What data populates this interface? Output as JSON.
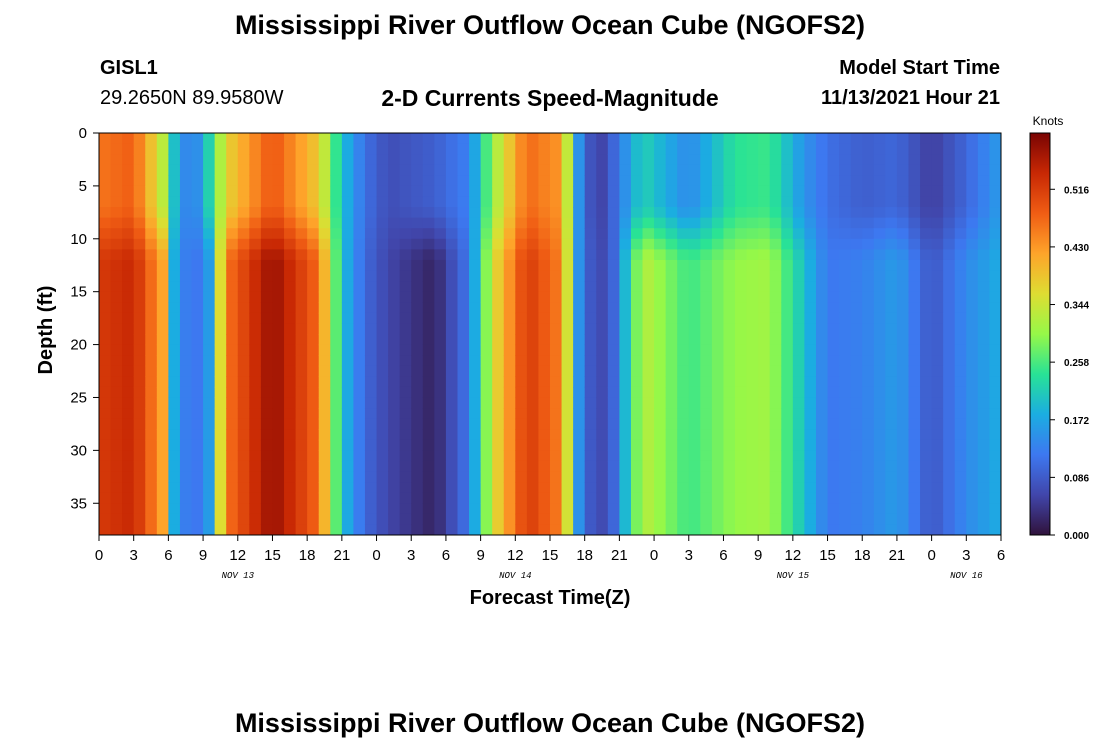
{
  "page": {
    "title_top": "Mississippi River Outflow Ocean Cube (NGOFS2)",
    "title_bottom": "Mississippi River Outflow Ocean Cube (NGOFS2)",
    "station_id": "GISL1",
    "station_coords": "29.2650N  89.9580W",
    "subtitle": "2-D Currents Speed-Magnitude",
    "start_label": "Model Start Time",
    "start_value": "11/13/2021 Hour 21"
  },
  "chart_data": {
    "type": "heatmap",
    "xlabel": "Forecast Time(Z)",
    "ylabel": "Depth (ft)",
    "colorbar_label": "Knots",
    "ylim": [
      0,
      38
    ],
    "y_ticks": [
      "0",
      "5",
      "10",
      "15",
      "20",
      "25",
      "30",
      "35"
    ],
    "x_ticks": [
      "0",
      "3",
      "6",
      "9",
      "12",
      "15",
      "18",
      "21",
      "0",
      "3",
      "6",
      "9",
      "12",
      "15",
      "18",
      "21",
      "0",
      "3",
      "6",
      "9",
      "12",
      "15",
      "18",
      "21",
      "0",
      "3",
      "6"
    ],
    "date_labels": [
      {
        "text": "NOV 13",
        "hour": 12
      },
      {
        "text": "NOV 14",
        "hour": 36
      },
      {
        "text": "NOV 15",
        "hour": 60
      },
      {
        "text": "NOV 16",
        "hour": 75
      }
    ],
    "colorbar_ticks": [
      "0.000",
      "0.086",
      "0.172",
      "0.258",
      "0.344",
      "0.430",
      "0.516"
    ],
    "value_range": [
      0,
      0.6
    ],
    "hours": [
      0,
      78
    ],
    "columns": [
      {
        "x_hour": 0,
        "top": 0.46,
        "bottom": 0.52
      },
      {
        "x_hour": 3,
        "top": 0.48,
        "bottom": 0.54
      },
      {
        "x_hour": 5.5,
        "top": 0.33,
        "bottom": 0.42
      },
      {
        "x_hour": 6.5,
        "top": 0.2,
        "bottom": 0.18
      },
      {
        "x_hour": 8,
        "top": 0.11,
        "bottom": 0.1
      },
      {
        "x_hour": 9.5,
        "top": 0.22,
        "bottom": 0.16
      },
      {
        "x_hour": 11,
        "top": 0.37,
        "bottom": 0.46
      },
      {
        "x_hour": 15,
        "top": 0.49,
        "bottom": 0.58
      },
      {
        "x_hour": 19,
        "top": 0.38,
        "bottom": 0.47
      },
      {
        "x_hour": 21,
        "top": 0.2,
        "bottom": 0.2
      },
      {
        "x_hour": 23,
        "top": 0.11,
        "bottom": 0.1
      },
      {
        "x_hour": 25,
        "top": 0.07,
        "bottom": 0.06
      },
      {
        "x_hour": 29,
        "top": 0.09,
        "bottom": 0.02
      },
      {
        "x_hour": 32,
        "top": 0.13,
        "bottom": 0.12
      },
      {
        "x_hour": 34,
        "top": 0.3,
        "bottom": 0.35
      },
      {
        "x_hour": 37,
        "top": 0.47,
        "bottom": 0.52
      },
      {
        "x_hour": 40,
        "top": 0.43,
        "bottom": 0.45
      },
      {
        "x_hour": 41.5,
        "top": 0.15,
        "bottom": 0.15
      },
      {
        "x_hour": 43,
        "top": 0.04,
        "bottom": 0.05
      },
      {
        "x_hour": 44.5,
        "top": 0.1,
        "bottom": 0.1
      },
      {
        "x_hour": 47,
        "top": 0.22,
        "bottom": 0.33
      },
      {
        "x_hour": 51,
        "top": 0.14,
        "bottom": 0.25
      },
      {
        "x_hour": 55,
        "top": 0.24,
        "bottom": 0.3
      },
      {
        "x_hour": 58,
        "top": 0.25,
        "bottom": 0.31
      },
      {
        "x_hour": 61,
        "top": 0.15,
        "bottom": 0.2
      },
      {
        "x_hour": 63,
        "top": 0.11,
        "bottom": 0.12
      },
      {
        "x_hour": 66,
        "top": 0.09,
        "bottom": 0.13
      },
      {
        "x_hour": 69,
        "top": 0.1,
        "bottom": 0.16
      },
      {
        "x_hour": 72,
        "top": 0.05,
        "bottom": 0.08
      },
      {
        "x_hour": 75,
        "top": 0.1,
        "bottom": 0.14
      },
      {
        "x_hour": 78,
        "top": 0.16,
        "bottom": 0.18
      }
    ]
  }
}
